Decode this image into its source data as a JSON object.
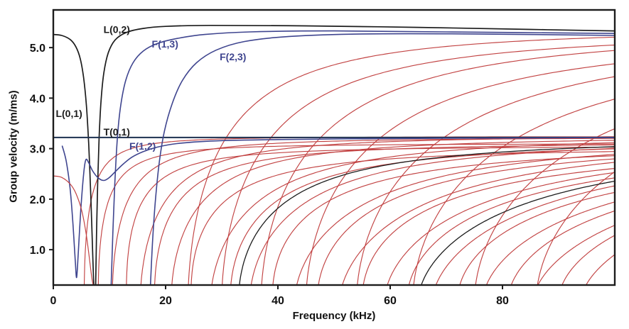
{
  "chart_data": {
    "type": "line",
    "title": "",
    "xlabel": "Frequency (kHz)",
    "ylabel": "Group velocity (m/ms)",
    "xlim": [
      0,
      100
    ],
    "ylim": [
      0.3,
      5.75
    ],
    "x_ticks": [
      "0",
      "20",
      "40",
      "60",
      "80"
    ],
    "x_tick_values": [
      0,
      20,
      40,
      60,
      80
    ],
    "y_ticks": [
      "1.0",
      "2.0",
      "3.0",
      "4.0",
      "5.0"
    ],
    "y_tick_values": [
      1.0,
      2.0,
      3.0,
      4.0,
      5.0
    ],
    "grid": false,
    "legend": "none (inline mode labels)",
    "colors": {
      "longitudinal_black": "#1c1c1c",
      "flexural_blue": "#3f458f",
      "flexural_red": "#c24343",
      "torsional_line": "#1d3150",
      "axis": "#1c1c1c"
    },
    "annotations": [
      {
        "text": "L(0,2)",
        "x": 11.3,
        "y": 5.36,
        "color_key": "longitudinal_black"
      },
      {
        "text": "F(1,3)",
        "x": 19.9,
        "y": 5.07,
        "color_key": "flexural_blue"
      },
      {
        "text": "F(2,3)",
        "x": 32.0,
        "y": 4.82,
        "color_key": "flexural_blue"
      },
      {
        "text": "L(0,1)",
        "x": 2.8,
        "y": 3.7,
        "color_key": "longitudinal_black"
      },
      {
        "text": "T(0,1)",
        "x": 11.3,
        "y": 3.33,
        "color_key": "longitudinal_black"
      },
      {
        "text": "F(1,2)",
        "x": 15.9,
        "y": 3.05,
        "color_key": "flexural_blue"
      }
    ],
    "named_series": [
      {
        "name": "L(0,1)",
        "color_key": "longitudinal_black",
        "width": 1.7,
        "points": [
          [
            0,
            5.26
          ],
          [
            1.5,
            5.24
          ],
          [
            3,
            5.16
          ],
          [
            4,
            5.02
          ],
          [
            4.8,
            4.78
          ],
          [
            5.4,
            4.4
          ],
          [
            5.9,
            3.85
          ],
          [
            6.3,
            3.1
          ],
          [
            6.6,
            2.3
          ],
          [
            6.85,
            1.5
          ],
          [
            7.05,
            0.8
          ],
          [
            7.2,
            0.3
          ]
        ]
      },
      {
        "name": "L(0,2)",
        "color_key": "longitudinal_black",
        "width": 1.7,
        "points": [
          [
            7.55,
            0.3
          ],
          [
            7.7,
            1.3
          ],
          [
            7.9,
            2.3
          ],
          [
            8.15,
            3.2
          ],
          [
            8.5,
            3.95
          ],
          [
            9.0,
            4.5
          ],
          [
            9.8,
            4.9
          ],
          [
            11,
            5.15
          ],
          [
            13,
            5.3
          ],
          [
            16,
            5.38
          ],
          [
            20,
            5.42
          ],
          [
            28,
            5.44
          ],
          [
            45,
            5.43
          ],
          [
            65,
            5.4
          ],
          [
            85,
            5.36
          ],
          [
            100,
            5.33
          ]
        ]
      },
      {
        "name": "T(0,1)",
        "color_key": "torsional_line",
        "width": 2.0,
        "points": [
          [
            0,
            3.22
          ],
          [
            50,
            3.22
          ],
          [
            100,
            3.22
          ]
        ]
      },
      {
        "name": "F(1,2)",
        "color_key": "flexural_blue",
        "width": 1.6,
        "points": [
          [
            1.6,
            3.05
          ],
          [
            2.3,
            2.75
          ],
          [
            3.0,
            2.2
          ],
          [
            3.5,
            1.5
          ],
          [
            3.9,
            0.8
          ],
          [
            4.15,
            0.45
          ],
          [
            4.45,
            0.95
          ],
          [
            4.9,
            1.8
          ],
          [
            5.4,
            2.5
          ],
          [
            5.8,
            2.78
          ],
          [
            6.3,
            2.72
          ],
          [
            7.0,
            2.56
          ],
          [
            8.0,
            2.42
          ],
          [
            9.0,
            2.37
          ],
          [
            10,
            2.43
          ],
          [
            11,
            2.54
          ],
          [
            12.5,
            2.7
          ],
          [
            14,
            2.83
          ],
          [
            16,
            2.94
          ],
          [
            18.5,
            3.03
          ],
          [
            22,
            3.1
          ],
          [
            28,
            3.15
          ],
          [
            40,
            3.18
          ],
          [
            60,
            3.2
          ],
          [
            80,
            3.21
          ],
          [
            100,
            3.22
          ]
        ]
      },
      {
        "name": "F(1,3)",
        "color_key": "flexural_blue",
        "width": 1.6,
        "points": [
          [
            10.3,
            0.3
          ],
          [
            10.6,
            1.3
          ],
          [
            10.95,
            2.3
          ],
          [
            11.4,
            3.2
          ],
          [
            12.0,
            3.85
          ],
          [
            12.9,
            4.35
          ],
          [
            14.2,
            4.7
          ],
          [
            16,
            4.93
          ],
          [
            18.5,
            5.08
          ],
          [
            22,
            5.18
          ],
          [
            27,
            5.26
          ],
          [
            35,
            5.31
          ],
          [
            50,
            5.33
          ],
          [
            70,
            5.31
          ],
          [
            100,
            5.28
          ]
        ]
      },
      {
        "name": "F(2,3)",
        "color_key": "flexural_blue",
        "width": 1.6,
        "points": [
          [
            17.3,
            0.3
          ],
          [
            17.7,
            1.2
          ],
          [
            18.2,
            2.0
          ],
          [
            18.9,
            2.75
          ],
          [
            19.8,
            3.35
          ],
          [
            21.2,
            3.9
          ],
          [
            23,
            4.35
          ],
          [
            25.5,
            4.7
          ],
          [
            29,
            4.95
          ],
          [
            34,
            5.12
          ],
          [
            42,
            5.22
          ],
          [
            55,
            5.27
          ],
          [
            75,
            5.27
          ],
          [
            100,
            5.24
          ]
        ]
      },
      {
        "name": "unlabeled-red-descending",
        "color_key": "flexural_red",
        "width": 1.2,
        "points": [
          [
            0,
            2.46
          ],
          [
            1.5,
            2.43
          ],
          [
            3,
            2.3
          ],
          [
            4,
            2.12
          ],
          [
            5,
            1.8
          ],
          [
            5.8,
            1.35
          ],
          [
            6.4,
            0.85
          ],
          [
            6.85,
            0.45
          ],
          [
            7.1,
            0.3
          ]
        ]
      }
    ],
    "mode_families": [
      {
        "name": "red-higher-order-modes-shear-plateau",
        "color_key": "flexural_red",
        "width": 1.15,
        "modes": [
          {
            "fc": 5.5,
            "plateau": 3.24,
            "exp": 0.45
          },
          {
            "fc": 8.0,
            "plateau": 3.1,
            "exp": 0.42
          },
          {
            "fc": 10.5,
            "plateau": 3.22,
            "exp": 0.5
          },
          {
            "fc": 13.0,
            "plateau": 3.05,
            "exp": 0.4
          },
          {
            "fc": 15.5,
            "plateau": 3.26,
            "exp": 0.55
          },
          {
            "fc": 18.0,
            "plateau": 3.12,
            "exp": 0.45
          },
          {
            "fc": 21.0,
            "plateau": 3.24,
            "exp": 0.52
          },
          {
            "fc": 24.5,
            "plateau": 3.02,
            "exp": 0.42
          },
          {
            "fc": 28.0,
            "plateau": 3.27,
            "exp": 0.58
          },
          {
            "fc": 31.5,
            "plateau": 3.15,
            "exp": 0.48
          },
          {
            "fc": 35.0,
            "plateau": 3.23,
            "exp": 0.55
          },
          {
            "fc": 39.0,
            "plateau": 3.08,
            "exp": 0.45
          },
          {
            "fc": 43.0,
            "plateau": 3.25,
            "exp": 0.58
          },
          {
            "fc": 47.0,
            "plateau": 3.17,
            "exp": 0.5
          },
          {
            "fc": 51.0,
            "plateau": 3.27,
            "exp": 0.6
          },
          {
            "fc": 55.0,
            "plateau": 3.1,
            "exp": 0.48
          },
          {
            "fc": 59.0,
            "plateau": 3.24,
            "exp": 0.58
          },
          {
            "fc": 63.0,
            "plateau": 3.15,
            "exp": 0.52
          },
          {
            "fc": 67.5,
            "plateau": 3.26,
            "exp": 0.6
          },
          {
            "fc": 72.0,
            "plateau": 3.12,
            "exp": 0.52
          },
          {
            "fc": 76.5,
            "plateau": 3.24,
            "exp": 0.58
          },
          {
            "fc": 81.0,
            "plateau": 3.18,
            "exp": 0.55
          },
          {
            "fc": 85.5,
            "plateau": 3.26,
            "exp": 0.6
          },
          {
            "fc": 90.0,
            "plateau": 3.2,
            "exp": 0.55
          },
          {
            "fc": 94.0,
            "plateau": 3.28,
            "exp": 0.6
          }
        ]
      },
      {
        "name": "red-higher-order-modes-longitudinal-plateau",
        "color_key": "flexural_red",
        "width": 1.15,
        "modes": [
          {
            "fc": 24,
            "plateau": 5.38,
            "exp": 0.55
          },
          {
            "fc": 30,
            "plateau": 5.32,
            "exp": 0.55
          },
          {
            "fc": 37,
            "plateau": 5.36,
            "exp": 0.55
          },
          {
            "fc": 45,
            "plateau": 5.3,
            "exp": 0.55
          },
          {
            "fc": 54,
            "plateau": 5.35,
            "exp": 0.55
          },
          {
            "fc": 64,
            "plateau": 5.32,
            "exp": 0.55
          },
          {
            "fc": 75,
            "plateau": 5.35,
            "exp": 0.55
          },
          {
            "fc": 86,
            "plateau": 5.33,
            "exp": 0.55
          }
        ]
      },
      {
        "name": "black-unlabeled-modes",
        "color_key": "longitudinal_black",
        "width": 1.3,
        "modes": [
          {
            "fc": 33,
            "plateau": 3.22,
            "exp": 0.5
          },
          {
            "fc": 65,
            "plateau": 3.24,
            "exp": 0.58
          }
        ]
      }
    ]
  }
}
